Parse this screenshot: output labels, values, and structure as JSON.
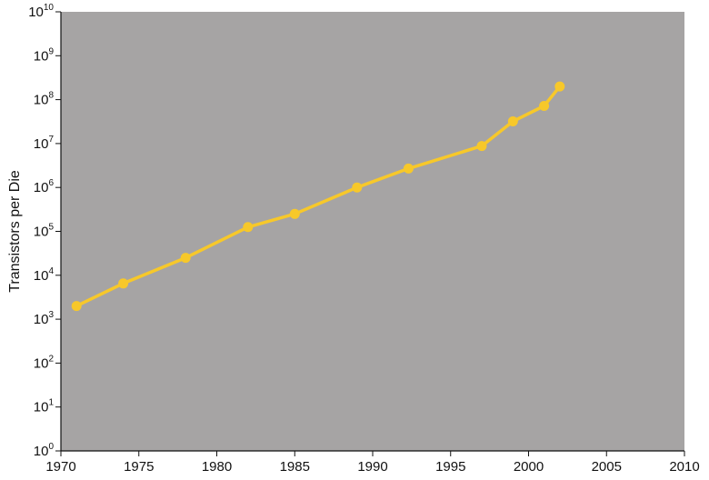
{
  "chart_data": {
    "type": "line",
    "ylabel": "Transistors per Die",
    "xlabel": "",
    "yscale": "log10",
    "xlim": [
      1970,
      2010
    ],
    "ylim": [
      1,
      10000000000
    ],
    "xticks": [
      "1970",
      "1975",
      "1980",
      "1985",
      "1990",
      "1995",
      "2000",
      "2005",
      "2010"
    ],
    "yticks": [
      {
        "base": "10",
        "exp": "0"
      },
      {
        "base": "10",
        "exp": "1"
      },
      {
        "base": "10",
        "exp": "2"
      },
      {
        "base": "10",
        "exp": "3"
      },
      {
        "base": "10",
        "exp": "4"
      },
      {
        "base": "10",
        "exp": "5"
      },
      {
        "base": "10",
        "exp": "6"
      },
      {
        "base": "10",
        "exp": "7"
      },
      {
        "base": "10",
        "exp": "8"
      },
      {
        "base": "10",
        "exp": "9"
      },
      {
        "base": "10",
        "exp": "10"
      }
    ],
    "grid": false,
    "series": [
      {
        "x": [
          1971,
          1974,
          1978,
          1982,
          1985,
          1989,
          1992.3,
          1997,
          1999,
          2001,
          2002
        ],
        "y": [
          2000,
          6500,
          25000,
          125000,
          250000,
          1000000,
          2700000,
          8800000,
          32000000,
          72000000,
          200000000
        ]
      }
    ],
    "colors": {
      "plot_background": "#a6a4a4",
      "line": "#f7c82a",
      "axis": "#111111"
    }
  }
}
